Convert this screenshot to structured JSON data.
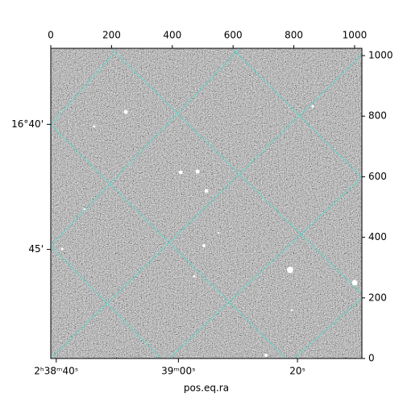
{
  "chart_data": {
    "type": "image",
    "xlabel": "pos.eq.ra",
    "xlim": [
      0,
      1024
    ],
    "xticks": [
      0,
      200,
      400,
      600,
      800,
      1000
    ],
    "ylim": [
      0,
      1024
    ],
    "yticks": [
      0,
      200,
      400,
      600,
      800,
      1000
    ],
    "ra_ticks": [
      {
        "value": 18,
        "label": "2ʰ38ᵐ40ˢ"
      },
      {
        "value": 420,
        "label": "39ᵐ00ˢ"
      },
      {
        "value": 812,
        "label": "20ˢ"
      }
    ],
    "dec_ticks": [
      {
        "value": 773,
        "label": "16°40'"
      },
      {
        "value": 360,
        "label": "45'"
      }
    ],
    "grid_color": "#40e0d0"
  }
}
